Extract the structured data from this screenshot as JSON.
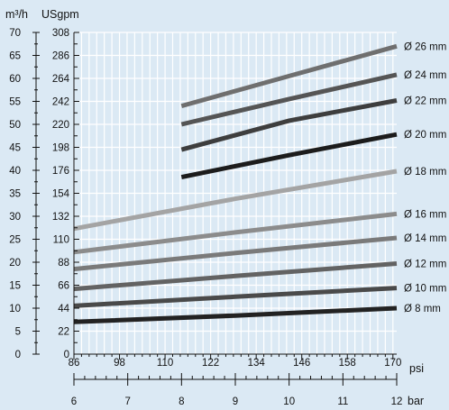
{
  "chart_data": {
    "type": "line",
    "left_axis": {
      "unit": "m³/h",
      "ticks": [
        "70",
        "65",
        "60",
        "55",
        "50",
        "45",
        "40",
        "35",
        "30",
        "25",
        "20",
        "15",
        "10",
        "5",
        "0"
      ],
      "ylim": [
        0,
        70
      ]
    },
    "right_axis": {
      "unit": "USgpm",
      "ticks": [
        "308",
        "286",
        "264",
        "242",
        "220",
        "198",
        "176",
        "154",
        "132",
        "110",
        "88",
        "66",
        "44",
        "22",
        "0"
      ],
      "ylim": [
        0,
        308
      ]
    },
    "x_axis_psi": {
      "unit": "psi",
      "ticks": [
        "86",
        "98",
        "110",
        "122",
        "134",
        "146",
        "158",
        "170"
      ],
      "xlim": [
        86,
        171
      ]
    },
    "x_axis_bar": {
      "unit": "bar",
      "ticks": [
        "6",
        "7",
        "8",
        "9",
        "10",
        "11",
        "12"
      ],
      "xlim": [
        6,
        12
      ]
    },
    "grid": true,
    "series": [
      {
        "name": "Ø 26 mm",
        "color": "#6f6f6f",
        "x_bar": [
          8.0,
          10.0,
          12.0
        ],
        "y": [
          54.0,
          60.5,
          67.0
        ]
      },
      {
        "name": "Ø 24 mm",
        "color": "#555555",
        "x_bar": [
          8.0,
          10.0,
          12.0
        ],
        "y": [
          50.0,
          55.5,
          60.8
        ]
      },
      {
        "name": "Ø 22 mm",
        "color": "#3e3e3e",
        "x_bar": [
          8.0,
          10.0,
          12.0
        ],
        "y": [
          44.5,
          50.8,
          55.2
        ]
      },
      {
        "name": "Ø 20 mm",
        "color": "#1c1c1c",
        "x_bar": [
          8.0,
          10.0,
          12.0
        ],
        "y": [
          38.5,
          43.3,
          47.8
        ]
      },
      {
        "name": "Ø 18 mm",
        "color": "#a4a4a4",
        "x_bar": [
          6.0,
          9.0,
          12.0
        ],
        "y": [
          27.3,
          33.8,
          39.8
        ]
      },
      {
        "name": "Ø 16 mm",
        "color": "#8c8c8c",
        "x_bar": [
          6.0,
          9.0,
          12.0
        ],
        "y": [
          22.2,
          26.5,
          30.5
        ]
      },
      {
        "name": "Ø 14 mm",
        "color": "#7a7a7a",
        "x_bar": [
          6.0,
          9.0,
          12.0
        ],
        "y": [
          18.5,
          22.0,
          25.3
        ]
      },
      {
        "name": "Ø 12 mm",
        "color": "#636363",
        "x_bar": [
          6.0,
          9.0,
          12.0
        ],
        "y": [
          14.2,
          17.0,
          19.7
        ]
      },
      {
        "name": "Ø 10 mm",
        "color": "#4a4a4a",
        "x_bar": [
          6.0,
          9.0,
          12.0
        ],
        "y": [
          10.5,
          12.5,
          14.4
        ]
      },
      {
        "name": "Ø 8 mm",
        "color": "#222222",
        "x_bar": [
          6.0,
          9.0,
          12.0
        ],
        "y": [
          7.0,
          8.4,
          10.0
        ]
      }
    ]
  }
}
